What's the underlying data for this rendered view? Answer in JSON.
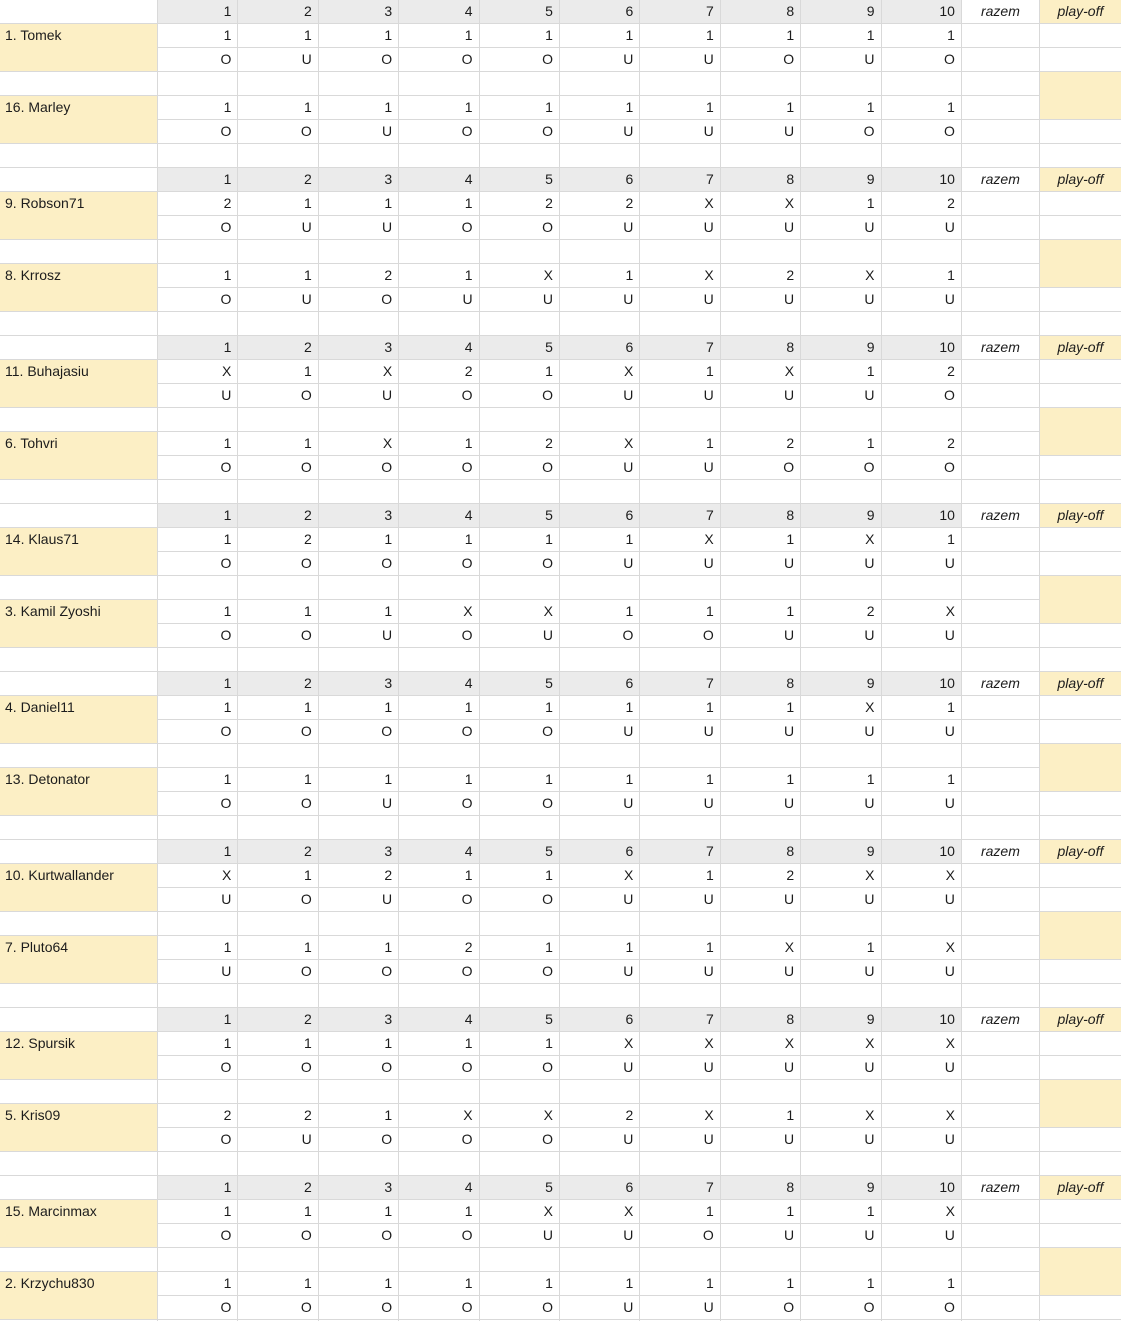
{
  "header": {
    "rounds": [
      "1",
      "2",
      "3",
      "4",
      "5",
      "6",
      "7",
      "8",
      "9",
      "10"
    ],
    "razem_label": "razem",
    "playoff_label": "play-off"
  },
  "blocks": [
    {
      "players": [
        {
          "name": "1. Tomek",
          "picks": [
            "1",
            "1",
            "1",
            "1",
            "1",
            "1",
            "1",
            "1",
            "1",
            "1"
          ],
          "ou": [
            "O",
            "U",
            "O",
            "O",
            "O",
            "U",
            "U",
            "O",
            "U",
            "O"
          ]
        },
        {
          "name": "16. Marley",
          "picks": [
            "1",
            "1",
            "1",
            "1",
            "1",
            "1",
            "1",
            "1",
            "1",
            "1"
          ],
          "ou": [
            "O",
            "O",
            "U",
            "O",
            "O",
            "U",
            "U",
            "U",
            "O",
            "O"
          ]
        }
      ]
    },
    {
      "players": [
        {
          "name": "9. Robson71",
          "picks": [
            "2",
            "1",
            "1",
            "1",
            "2",
            "2",
            "X",
            "X",
            "1",
            "2"
          ],
          "ou": [
            "O",
            "U",
            "U",
            "O",
            "O",
            "U",
            "U",
            "U",
            "U",
            "U"
          ]
        },
        {
          "name": "8. Krrosz",
          "picks": [
            "1",
            "1",
            "2",
            "1",
            "X",
            "1",
            "X",
            "2",
            "X",
            "1"
          ],
          "ou": [
            "O",
            "U",
            "O",
            "U",
            "U",
            "U",
            "U",
            "U",
            "U",
            "U"
          ]
        }
      ]
    },
    {
      "players": [
        {
          "name": "11. Buhajasiu",
          "picks": [
            "X",
            "1",
            "X",
            "2",
            "1",
            "X",
            "1",
            "X",
            "1",
            "2"
          ],
          "ou": [
            "U",
            "O",
            "U",
            "O",
            "O",
            "U",
            "U",
            "U",
            "U",
            "O"
          ]
        },
        {
          "name": "6. Tohvri",
          "picks": [
            "1",
            "1",
            "X",
            "1",
            "2",
            "X",
            "1",
            "2",
            "1",
            "2"
          ],
          "ou": [
            "O",
            "O",
            "O",
            "O",
            "O",
            "U",
            "U",
            "O",
            "O",
            "O"
          ]
        }
      ]
    },
    {
      "players": [
        {
          "name": "14. Klaus71",
          "picks": [
            "1",
            "2",
            "1",
            "1",
            "1",
            "1",
            "X",
            "1",
            "X",
            "1"
          ],
          "ou": [
            "O",
            "O",
            "O",
            "O",
            "O",
            "U",
            "U",
            "U",
            "U",
            "U"
          ]
        },
        {
          "name": "3. Kamil Zyoshi",
          "picks": [
            "1",
            "1",
            "1",
            "X",
            "X",
            "1",
            "1",
            "1",
            "2",
            "X"
          ],
          "ou": [
            "O",
            "O",
            "U",
            "O",
            "U",
            "O",
            "O",
            "U",
            "U",
            "U"
          ]
        }
      ]
    },
    {
      "players": [
        {
          "name": "4. Daniel11",
          "picks": [
            "1",
            "1",
            "1",
            "1",
            "1",
            "1",
            "1",
            "1",
            "X",
            "1"
          ],
          "ou": [
            "O",
            "O",
            "O",
            "O",
            "O",
            "U",
            "U",
            "U",
            "U",
            "U"
          ]
        },
        {
          "name": "13. Detonator",
          "picks": [
            "1",
            "1",
            "1",
            "1",
            "1",
            "1",
            "1",
            "1",
            "1",
            "1"
          ],
          "ou": [
            "O",
            "O",
            "U",
            "O",
            "O",
            "U",
            "U",
            "U",
            "U",
            "U"
          ]
        }
      ]
    },
    {
      "players": [
        {
          "name": "10. Kurtwallander",
          "picks": [
            "X",
            "1",
            "2",
            "1",
            "1",
            "X",
            "1",
            "2",
            "X",
            "X"
          ],
          "ou": [
            "U",
            "O",
            "U",
            "O",
            "O",
            "U",
            "U",
            "U",
            "U",
            "U"
          ]
        },
        {
          "name": "7. Pluto64",
          "picks": [
            "1",
            "1",
            "1",
            "2",
            "1",
            "1",
            "1",
            "X",
            "1",
            "X"
          ],
          "ou": [
            "U",
            "O",
            "O",
            "O",
            "O",
            "U",
            "U",
            "U",
            "U",
            "U"
          ]
        }
      ]
    },
    {
      "players": [
        {
          "name": "12. Spursik",
          "picks": [
            "1",
            "1",
            "1",
            "1",
            "1",
            "X",
            "X",
            "X",
            "X",
            "X"
          ],
          "ou": [
            "O",
            "O",
            "O",
            "O",
            "O",
            "U",
            "U",
            "U",
            "U",
            "U"
          ]
        },
        {
          "name": "5. Kris09",
          "picks": [
            "2",
            "2",
            "1",
            "X",
            "X",
            "2",
            "X",
            "1",
            "X",
            "X"
          ],
          "ou": [
            "O",
            "U",
            "O",
            "O",
            "O",
            "U",
            "U",
            "U",
            "U",
            "U"
          ]
        }
      ]
    },
    {
      "players": [
        {
          "name": "15. Marcinmax",
          "picks": [
            "1",
            "1",
            "1",
            "1",
            "X",
            "X",
            "1",
            "1",
            "1",
            "X"
          ],
          "ou": [
            "O",
            "O",
            "O",
            "O",
            "U",
            "U",
            "O",
            "U",
            "U",
            "U"
          ]
        },
        {
          "name": "2. Krzychu830",
          "picks": [
            "1",
            "1",
            "1",
            "1",
            "1",
            "1",
            "1",
            "1",
            "1",
            "1"
          ],
          "ou": [
            "O",
            "O",
            "O",
            "O",
            "O",
            "U",
            "U",
            "O",
            "O",
            "O"
          ]
        }
      ]
    }
  ],
  "colors": {
    "header_fill": "#ebebeb",
    "highlight_fill": "#fcefc5",
    "gridline": "#d9d9d9",
    "text": "#1c1c1c"
  }
}
